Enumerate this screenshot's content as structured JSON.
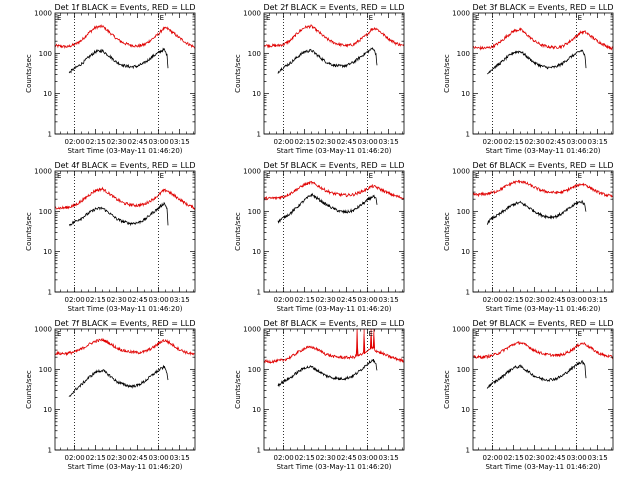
{
  "figure": {
    "x_tick_labels": [
      "02:00",
      "02:15",
      "02:30",
      "02:45",
      "03:00",
      "03:15"
    ],
    "x_tick_minutes": [
      120,
      135,
      150,
      165,
      180,
      195
    ],
    "y_tick_labels": [
      "1",
      "10",
      "100",
      "1000"
    ],
    "xlabel": "Start Time (03-May-11 01:46:20)",
    "ylabel": "Counts/sec",
    "marker_lines_minutes": [
      120,
      180
    ],
    "event_marker_label": "E",
    "colors": {
      "events": "#000000",
      "lld": "#e00000",
      "axes": "#000000",
      "background": "#ffffff"
    }
  },
  "chart_data": [
    {
      "type": "line",
      "title": "Det 1f BLACK = Events, RED = LLD",
      "xlabel": "Start Time (03-May-11 01:46:20)",
      "ylabel": "Counts/sec",
      "x_unit": "minutes after 00:00 UT",
      "xlim": [
        106,
        206
      ],
      "ylim": [
        1,
        1000
      ],
      "yscale": "log",
      "series": [
        {
          "color": "#e00000",
          "x": [
            106,
            110,
            115,
            120,
            125,
            130,
            135,
            140,
            145,
            150,
            155,
            160,
            165,
            170,
            175,
            180,
            183,
            186,
            190,
            195,
            200,
            206
          ],
          "y": [
            155,
            150,
            145,
            165,
            210,
            320,
            440,
            470,
            330,
            230,
            180,
            160,
            150,
            165,
            220,
            300,
            400,
            420,
            330,
            240,
            180,
            140
          ]
        },
        {
          "color": "#000000",
          "x": [
            116,
            118,
            120,
            125,
            130,
            135,
            140,
            145,
            150,
            155,
            160,
            165,
            170,
            175,
            180,
            184,
            186,
            187
          ],
          "y": [
            32,
            38,
            42,
            55,
            80,
            110,
            115,
            85,
            60,
            50,
            46,
            48,
            58,
            80,
            105,
            125,
            90,
            35
          ]
        }
      ]
    },
    {
      "type": "line",
      "title": "Det 2f BLACK = Events, RED = LLD",
      "xlabel": "Start Time (03-May-11 01:46:20)",
      "ylabel": "Counts/sec",
      "x_unit": "minutes after 00:00 UT",
      "xlim": [
        106,
        206
      ],
      "ylim": [
        1,
        1000
      ],
      "yscale": "log",
      "series": [
        {
          "color": "#e00000",
          "x": [
            106,
            110,
            115,
            120,
            125,
            130,
            135,
            140,
            145,
            150,
            155,
            160,
            165,
            170,
            175,
            180,
            183,
            186,
            190,
            195,
            200,
            206
          ],
          "y": [
            160,
            155,
            155,
            165,
            210,
            320,
            440,
            470,
            340,
            240,
            190,
            165,
            155,
            165,
            220,
            300,
            400,
            420,
            320,
            230,
            180,
            150
          ]
        },
        {
          "color": "#000000",
          "x": [
            116,
            118,
            120,
            125,
            130,
            135,
            140,
            145,
            150,
            155,
            160,
            165,
            170,
            175,
            180,
            184,
            186,
            187
          ],
          "y": [
            34,
            40,
            45,
            58,
            82,
            110,
            118,
            85,
            62,
            52,
            48,
            50,
            60,
            82,
            110,
            135,
            95,
            38
          ]
        }
      ]
    },
    {
      "type": "line",
      "title": "Det 3f BLACK = Events, RED = LLD",
      "xlabel": "Start Time (03-May-11 01:46:20)",
      "ylabel": "Counts/sec",
      "x_unit": "minutes after 00:00 UT",
      "xlim": [
        106,
        206
      ],
      "ylim": [
        1,
        1000
      ],
      "yscale": "log",
      "series": [
        {
          "color": "#e00000",
          "x": [
            106,
            110,
            115,
            120,
            125,
            130,
            135,
            140,
            145,
            150,
            155,
            160,
            165,
            170,
            175,
            180,
            183,
            186,
            190,
            195,
            200,
            206
          ],
          "y": [
            140,
            135,
            135,
            145,
            185,
            260,
            360,
            390,
            280,
            200,
            160,
            145,
            140,
            150,
            195,
            270,
            330,
            340,
            270,
            200,
            160,
            130
          ]
        },
        {
          "color": "#000000",
          "x": [
            116,
            118,
            120,
            125,
            130,
            135,
            140,
            145,
            150,
            155,
            160,
            165,
            170,
            175,
            180,
            184,
            186,
            187
          ],
          "y": [
            30,
            36,
            42,
            55,
            78,
            105,
            112,
            80,
            58,
            48,
            44,
            46,
            56,
            78,
            100,
            120,
            85,
            30
          ]
        }
      ]
    },
    {
      "type": "line",
      "title": "Det 4f BLACK = Events, RED = LLD",
      "xlabel": "Start Time (03-May-11 01:46:20)",
      "ylabel": "Counts/sec",
      "x_unit": "minutes after 00:00 UT",
      "xlim": [
        106,
        206
      ],
      "ylim": [
        1,
        1000
      ],
      "yscale": "log",
      "series": [
        {
          "color": "#e00000",
          "x": [
            106,
            110,
            115,
            120,
            125,
            130,
            135,
            140,
            145,
            150,
            155,
            160,
            165,
            170,
            175,
            180,
            183,
            186,
            190,
            195,
            200,
            206
          ],
          "y": [
            125,
            120,
            125,
            140,
            180,
            250,
            330,
            360,
            270,
            200,
            160,
            145,
            140,
            150,
            190,
            250,
            320,
            330,
            260,
            200,
            150,
            120
          ]
        },
        {
          "color": "#000000",
          "x": [
            116,
            118,
            120,
            125,
            130,
            135,
            140,
            145,
            150,
            155,
            160,
            165,
            170,
            175,
            180,
            184,
            186,
            187
          ],
          "y": [
            45,
            50,
            55,
            68,
            90,
            115,
            120,
            90,
            65,
            55,
            50,
            52,
            62,
            88,
            120,
            160,
            120,
            30
          ]
        }
      ]
    },
    {
      "type": "line",
      "title": "Det 5f BLACK = Events, RED = LLD",
      "xlabel": "Start Time (03-May-11 01:46:20)",
      "ylabel": "Counts/sec",
      "x_unit": "minutes after 00:00 UT",
      "xlim": [
        106,
        206
      ],
      "ylim": [
        1,
        1000
      ],
      "yscale": "log",
      "series": [
        {
          "color": "#e00000",
          "x": [
            106,
            110,
            115,
            120,
            125,
            130,
            135,
            140,
            145,
            150,
            155,
            160,
            165,
            170,
            175,
            180,
            183,
            186,
            190,
            195,
            200,
            206
          ],
          "y": [
            210,
            210,
            215,
            230,
            280,
            360,
            460,
            520,
            420,
            330,
            280,
            260,
            250,
            260,
            300,
            360,
            420,
            400,
            340,
            280,
            240,
            210
          ]
        },
        {
          "color": "#000000",
          "x": [
            116,
            118,
            120,
            125,
            130,
            135,
            140,
            145,
            150,
            155,
            160,
            165,
            170,
            175,
            180,
            184,
            186,
            187
          ],
          "y": [
            55,
            62,
            70,
            90,
            130,
            190,
            260,
            200,
            150,
            120,
            100,
            95,
            105,
            140,
            190,
            240,
            200,
            120
          ]
        }
      ]
    },
    {
      "type": "line",
      "title": "Det 6f BLACK = Events, RED = LLD",
      "xlabel": "Start Time (03-May-11 01:46:20)",
      "ylabel": "Counts/sec",
      "x_unit": "minutes after 00:00 UT",
      "xlim": [
        106,
        206
      ],
      "ylim": [
        1,
        1000
      ],
      "yscale": "log",
      "series": [
        {
          "color": "#e00000",
          "x": [
            106,
            110,
            115,
            120,
            125,
            130,
            135,
            140,
            145,
            150,
            155,
            160,
            165,
            170,
            175,
            180,
            183,
            186,
            190,
            195,
            200,
            206
          ],
          "y": [
            260,
            260,
            270,
            290,
            340,
            430,
            520,
            560,
            480,
            390,
            330,
            300,
            290,
            300,
            360,
            430,
            470,
            460,
            380,
            300,
            260,
            230
          ]
        },
        {
          "color": "#000000",
          "x": [
            116,
            118,
            120,
            125,
            130,
            135,
            140,
            145,
            150,
            155,
            160,
            165,
            170,
            175,
            180,
            184,
            186,
            187
          ],
          "y": [
            50,
            60,
            68,
            85,
            115,
            150,
            165,
            130,
            100,
            80,
            72,
            74,
            90,
            120,
            160,
            175,
            140,
            80
          ]
        }
      ]
    },
    {
      "type": "line",
      "title": "Det 7f BLACK = Events, RED = LLD",
      "xlabel": "Start Time (03-May-11 01:46:20)",
      "ylabel": "Counts/sec",
      "x_unit": "minutes after 00:00 UT",
      "xlim": [
        106,
        206
      ],
      "ylim": [
        1,
        1000
      ],
      "yscale": "log",
      "series": [
        {
          "color": "#e00000",
          "x": [
            106,
            110,
            115,
            120,
            125,
            130,
            135,
            140,
            145,
            150,
            155,
            160,
            165,
            170,
            175,
            180,
            183,
            186,
            190,
            195,
            200,
            206
          ],
          "y": [
            250,
            245,
            250,
            270,
            320,
            410,
            500,
            540,
            440,
            340,
            290,
            270,
            260,
            275,
            330,
            430,
            520,
            500,
            400,
            310,
            260,
            230
          ]
        },
        {
          "color": "#000000",
          "x": [
            116,
            118,
            120,
            125,
            130,
            135,
            140,
            145,
            150,
            155,
            160,
            165,
            170,
            175,
            180,
            184,
            186,
            187
          ],
          "y": [
            20,
            25,
            30,
            42,
            62,
            85,
            95,
            70,
            50,
            42,
            38,
            40,
            50,
            70,
            95,
            115,
            85,
            40
          ]
        }
      ]
    },
    {
      "type": "line",
      "title": "Det 8f BLACK = Events, RED = LLD",
      "xlabel": "Start Time (03-May-11 01:46:20)",
      "ylabel": "Counts/sec",
      "x_unit": "minutes after 00:00 UT",
      "xlim": [
        106,
        206
      ],
      "ylim": [
        1,
        1000
      ],
      "yscale": "log",
      "series": [
        {
          "color": "#e00000",
          "x": [
            106,
            110,
            115,
            120,
            125,
            130,
            135,
            140,
            145,
            150,
            155,
            160,
            165,
            170,
            172,
            172.5,
            173,
            175,
            177,
            177.5,
            178,
            180,
            182,
            182.5,
            183,
            184,
            184.5,
            185,
            190,
            195,
            200,
            206
          ],
          "y": [
            160,
            155,
            160,
            170,
            200,
            260,
            330,
            360,
            300,
            240,
            210,
            200,
            195,
            200,
            210,
            1000,
            220,
            230,
            240,
            1000,
            250,
            280,
            320,
            1000,
            350,
            330,
            1000,
            300,
            250,
            210,
            185,
            160
          ]
        },
        {
          "color": "#000000",
          "x": [
            116,
            118,
            120,
            125,
            130,
            135,
            140,
            145,
            150,
            155,
            160,
            165,
            170,
            175,
            180,
            184,
            186,
            187
          ],
          "y": [
            40,
            45,
            50,
            62,
            85,
            110,
            115,
            90,
            70,
            62,
            58,
            60,
            70,
            95,
            140,
            175,
            130,
            80
          ]
        }
      ]
    },
    {
      "type": "line",
      "title": "Det 9f BLACK = Events, RED = LLD",
      "xlabel": "Start Time (03-May-11 01:46:20)",
      "ylabel": "Counts/sec",
      "x_unit": "minutes after 00:00 UT",
      "xlim": [
        106,
        206
      ],
      "ylim": [
        1,
        1000
      ],
      "yscale": "log",
      "series": [
        {
          "color": "#e00000",
          "x": [
            106,
            110,
            115,
            120,
            125,
            130,
            135,
            140,
            145,
            150,
            155,
            160,
            165,
            170,
            175,
            180,
            183,
            186,
            190,
            195,
            200,
            206
          ],
          "y": [
            200,
            200,
            205,
            220,
            260,
            330,
            420,
            460,
            380,
            290,
            250,
            230,
            220,
            230,
            280,
            370,
            440,
            430,
            340,
            260,
            220,
            200
          ]
        },
        {
          "color": "#000000",
          "x": [
            116,
            118,
            120,
            125,
            130,
            135,
            140,
            145,
            150,
            155,
            160,
            165,
            170,
            175,
            180,
            184,
            186,
            187
          ],
          "y": [
            35,
            40,
            45,
            58,
            82,
            110,
            118,
            90,
            68,
            58,
            55,
            58,
            70,
            95,
            130,
            160,
            120,
            45
          ]
        }
      ]
    }
  ]
}
